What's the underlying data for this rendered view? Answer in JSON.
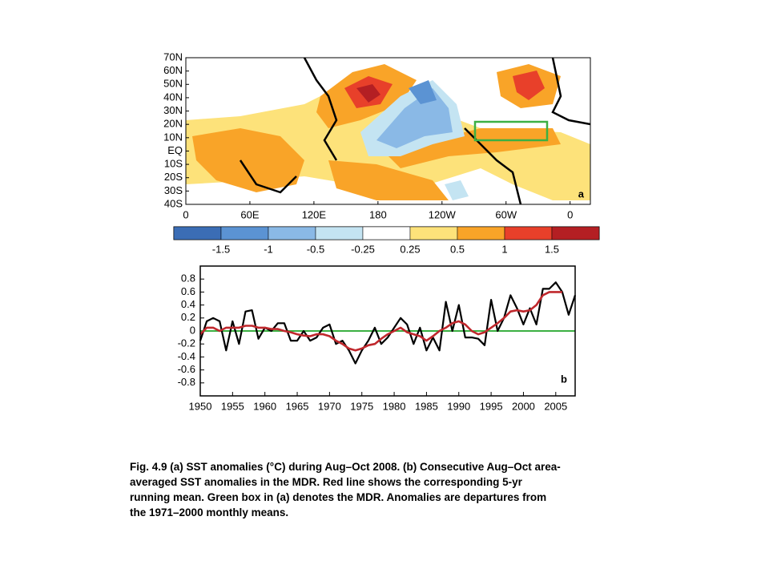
{
  "chart_data": [
    {
      "type": "map",
      "panel_label": "a",
      "xlim": [
        0,
        379
      ],
      "ylim": [
        -40,
        70
      ],
      "xticks": [
        0,
        {
          "value": 60,
          "label": "60E"
        },
        {
          "value": 120,
          "label": "120E"
        },
        180,
        {
          "value": 240,
          "label": "120W"
        },
        {
          "value": 300,
          "label": "60W"
        },
        {
          "value": 360,
          "label": "0"
        }
      ],
      "yticks": [
        {
          "value": 70,
          "label": "70N"
        },
        {
          "value": 60,
          "label": "60N"
        },
        {
          "value": 50,
          "label": "50N"
        },
        {
          "value": 40,
          "label": "40N"
        },
        {
          "value": 30,
          "label": "30N"
        },
        {
          "value": 20,
          "label": "20N"
        },
        {
          "value": 10,
          "label": "10N"
        },
        {
          "value": 0,
          "label": "EQ"
        },
        {
          "value": -10,
          "label": "10S"
        },
        {
          "value": -20,
          "label": "20S"
        },
        {
          "value": -30,
          "label": "30S"
        },
        {
          "value": -40,
          "label": "40S"
        }
      ],
      "colorbar": {
        "colors": [
          "#3b6db5",
          "#5b93d3",
          "#8ab9e6",
          "#c4e4f2",
          "#ffffff",
          "#fde27a",
          "#f9a428",
          "#e8402a",
          "#b41f23"
        ],
        "ticks": [
          -1.5,
          -1,
          -0.5,
          -0.25,
          0.25,
          0.5,
          1,
          1.5
        ]
      },
      "box_color": "#3cb043"
    },
    {
      "type": "line",
      "panel_label": "b",
      "x": [
        1950,
        1951,
        1952,
        1953,
        1954,
        1955,
        1956,
        1957,
        1958,
        1959,
        1960,
        1961,
        1962,
        1963,
        1964,
        1965,
        1966,
        1967,
        1968,
        1969,
        1970,
        1971,
        1972,
        1973,
        1974,
        1975,
        1976,
        1977,
        1978,
        1979,
        1980,
        1981,
        1982,
        1983,
        1984,
        1985,
        1986,
        1987,
        1988,
        1989,
        1990,
        1991,
        1992,
        1993,
        1994,
        1995,
        1996,
        1997,
        1998,
        1999,
        2000,
        2001,
        2002,
        2003,
        2004,
        2005,
        2006,
        2007,
        2008
      ],
      "series": [
        {
          "color": "#000000",
          "values": [
            -0.15,
            0.15,
            0.2,
            0.15,
            -0.3,
            0.15,
            -0.2,
            0.3,
            0.32,
            -0.12,
            0.05,
            0.0,
            0.12,
            0.12,
            -0.15,
            -0.15,
            0.0,
            -0.15,
            -0.1,
            0.05,
            0.1,
            -0.2,
            -0.15,
            -0.3,
            -0.5,
            -0.3,
            -0.15,
            0.05,
            -0.2,
            -0.1,
            0.05,
            0.2,
            0.1,
            -0.2,
            0.05,
            -0.3,
            -0.1,
            -0.3,
            0.45,
            0.0,
            0.4,
            -0.1,
            -0.1,
            -0.12,
            -0.22,
            0.48,
            0.0,
            0.2,
            0.55,
            0.35,
            0.1,
            0.35,
            0.1,
            0.65,
            0.65,
            0.75,
            0.6,
            0.25,
            0.55
          ]
        },
        {
          "color": "#c0282d",
          "values": [
            -0.05,
            0.05,
            0.05,
            0.0,
            0.05,
            0.05,
            0.05,
            0.08,
            0.08,
            0.05,
            0.05,
            0.03,
            0.03,
            0.0,
            -0.02,
            -0.05,
            -0.07,
            -0.08,
            -0.05,
            -0.05,
            -0.08,
            -0.15,
            -0.2,
            -0.27,
            -0.3,
            -0.27,
            -0.22,
            -0.2,
            -0.12,
            -0.05,
            0.0,
            0.05,
            -0.02,
            -0.05,
            -0.08,
            -0.15,
            -0.08,
            0.0,
            0.05,
            0.12,
            0.15,
            0.1,
            0.0,
            -0.05,
            -0.02,
            0.05,
            0.12,
            0.2,
            0.3,
            0.32,
            0.3,
            0.32,
            0.4,
            0.55,
            0.6,
            0.6,
            0.6,
            null,
            null
          ]
        }
      ],
      "reference_line": {
        "value": 0,
        "color": "#3cb043"
      },
      "xlim": [
        1950,
        2008
      ],
      "ylim": [
        -1,
        1
      ],
      "xticks": [
        1950,
        1955,
        1960,
        1965,
        1970,
        1975,
        1980,
        1985,
        1990,
        1995,
        2000,
        2005
      ],
      "yticks": [
        0.8,
        0.6,
        0.4,
        0.2,
        0,
        -0.2,
        -0.4,
        -0.6,
        -0.8
      ]
    }
  ],
  "caption": [
    "Fig. 4.9 (a) SST anomalies (°C) during Aug–Oct 2008. (b) Consecutive Aug–Oct area-",
    "averaged SST anomalies in the MDR. Red line shows the corresponding 5-yr",
    "running mean. Green box in (a) denotes the MDR. Anomalies are departures from",
    "the 1971–2000 monthly means."
  ]
}
